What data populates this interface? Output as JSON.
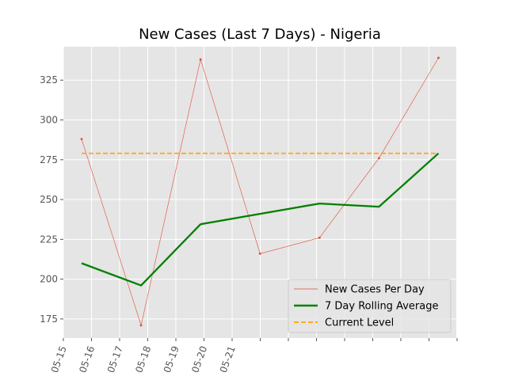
{
  "chart_data": {
    "type": "line",
    "title": "New Cases (Last 7 Days) - Nigeria",
    "xlabel": "",
    "ylabel": "",
    "x_tick_labels": [
      "05-15",
      "05-16",
      "05-17",
      "05-18",
      "05-19",
      "05-20",
      "05-21"
    ],
    "y_ticks": [
      175,
      200,
      225,
      250,
      275,
      300,
      325
    ],
    "ylim": [
      163,
      346
    ],
    "grid": true,
    "legend_position": "lower-right",
    "series": [
      {
        "name": "New Cases Per Day",
        "style": "thin-line-with-points",
        "color": "#e24a33",
        "x": [
          0,
          1,
          2,
          3,
          4,
          5,
          6
        ],
        "values": [
          288,
          171,
          338,
          216,
          226,
          276,
          339
        ]
      },
      {
        "name": "7 Day Rolling Average",
        "style": "thick-line",
        "color": "#008000",
        "x": [
          0,
          1,
          2,
          3,
          4,
          5,
          6
        ],
        "values": [
          210,
          196,
          234.5,
          241,
          247.5,
          245.5,
          279
        ]
      },
      {
        "name": "Current Level",
        "style": "dashed-line",
        "color": "#ffa500",
        "x": [
          0,
          6
        ],
        "values": [
          279,
          279
        ]
      }
    ]
  }
}
